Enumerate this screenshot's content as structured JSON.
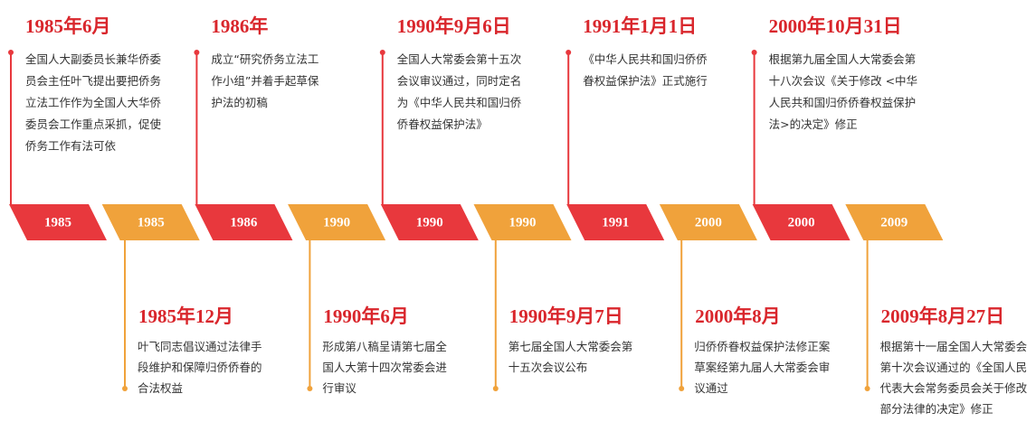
{
  "band": [
    "1985",
    "1985",
    "1986",
    "1990",
    "1990",
    "1990",
    "1991",
    "2000",
    "2000",
    "2009"
  ],
  "top_events": [
    {
      "date": "1985年6月",
      "lines": [
        "全国人大副委员长兼华侨委",
        "员会主任叶飞提出要把侨务",
        "立法工作作为全国人大华侨",
        "委员会工作重点采抓，促使",
        "侨务工作有法可依"
      ]
    },
    {
      "date": "1986年",
      "lines": [
        "成立“研究侨务立法工",
        "作小组”并着手起草保",
        "护法的初稿"
      ]
    },
    {
      "date": "1990年9月6日",
      "lines": [
        "全国人大常委会第十五次",
        "会议审议通过，同时定名",
        "为《中华人民共和国归侨",
        "侨眷权益保护法》"
      ]
    },
    {
      "date": "1991年1月1日",
      "lines": [
        "《中华人民共和国归侨侨",
        "眷权益保护法》正式施行"
      ]
    },
    {
      "date": "2000年10月31日",
      "lines": [
        "根据第九届全国人大常委会第",
        "十八次会议《关于修改 <中华",
        "人民共和国归侨侨眷权益保护",
        "法>的决定》修正"
      ]
    }
  ],
  "bottom_events": [
    {
      "date": "1985年12月",
      "lines": [
        "叶飞同志倡议通过法律手",
        "段维护和保障归侨侨眷的",
        "合法权益"
      ]
    },
    {
      "date": "1990年6月",
      "lines": [
        "形成第八稿呈请第七届全",
        "国人大第十四次常委会进",
        "行审议"
      ]
    },
    {
      "date": "1990年9月7日",
      "lines": [
        "第七届全国人大常委会第",
        "十五次会议公布"
      ]
    },
    {
      "date": "2000年8月",
      "lines": [
        "归侨侨眷权益保护法修正案",
        "草案经第九届人大常委会审",
        "议通过"
      ]
    },
    {
      "date": "2009年8月27日",
      "lines": [
        "根据第十一届全国人大常委会",
        "第十次会议通过的《全国人民",
        "代表大会常务委员会关于修改",
        "部分法律的决定》修正"
      ]
    }
  ]
}
